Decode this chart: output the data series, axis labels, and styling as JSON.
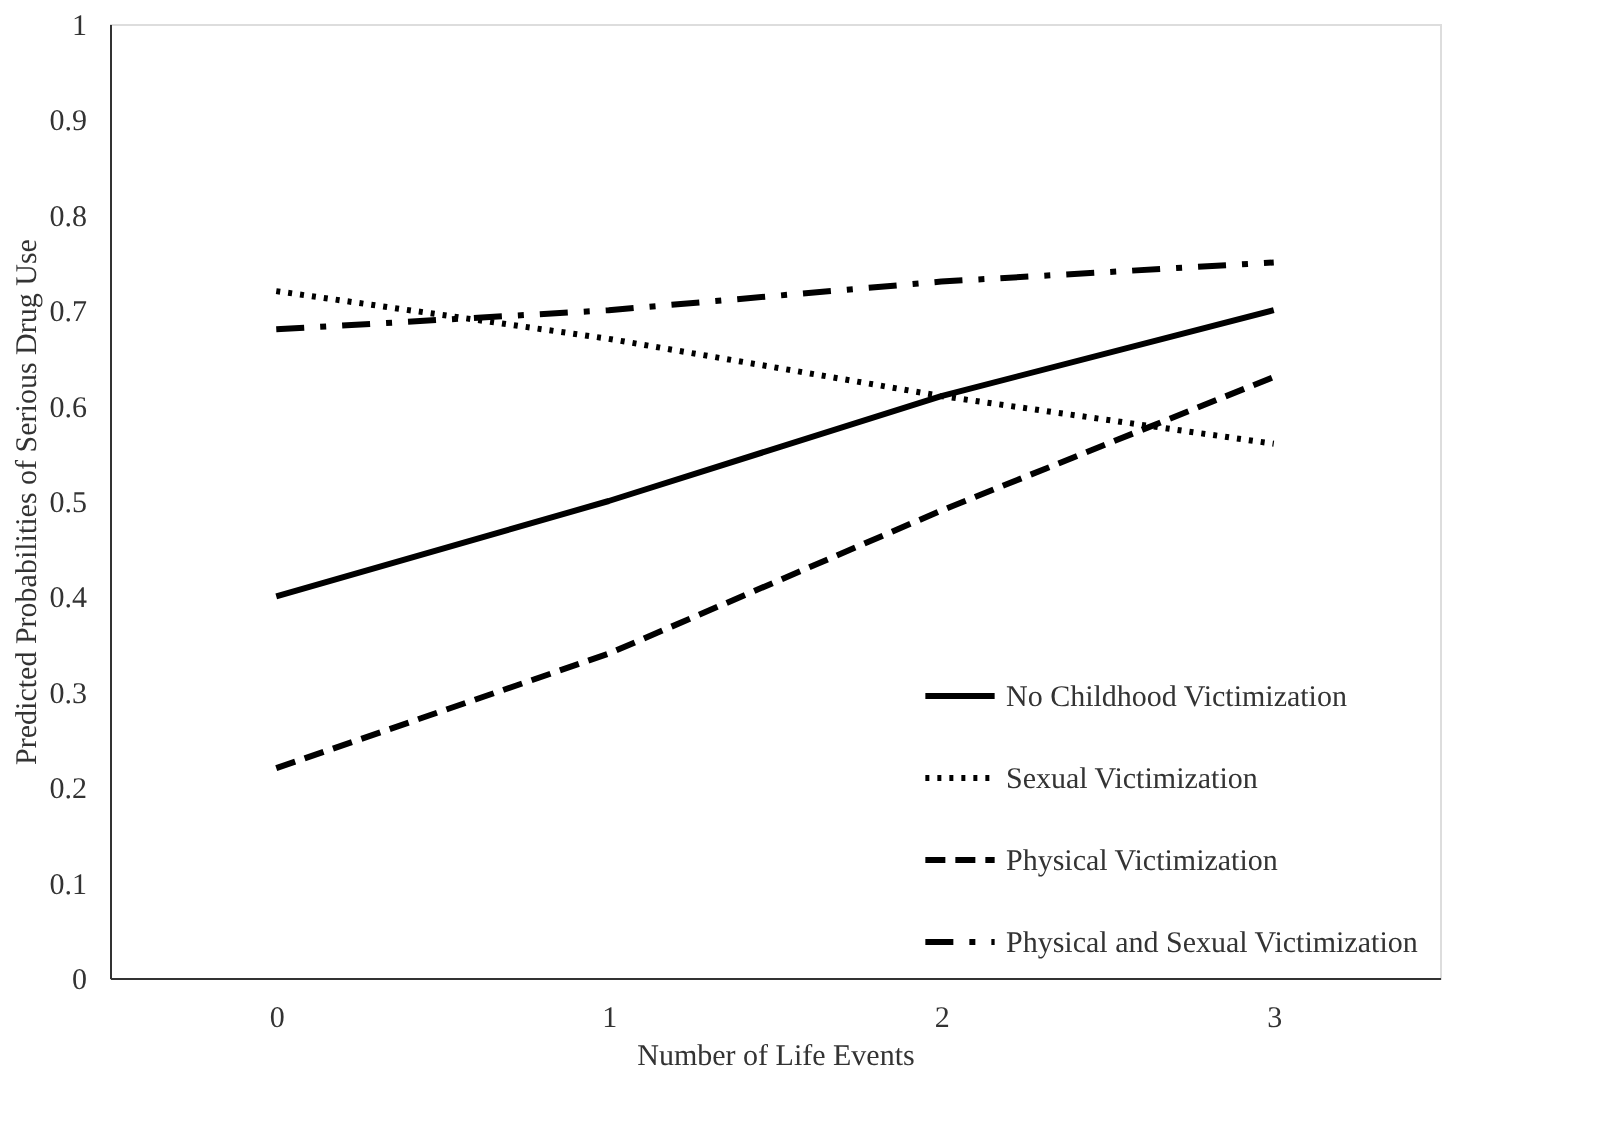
{
  "chart_data": {
    "type": "line",
    "xlabel": "Number of Life Events",
    "ylabel": "Predicted Probabilities of Serious Drug Use",
    "categories": [
      "0",
      "1",
      "2",
      "3"
    ],
    "series": [
      {
        "name": "No Childhood Victimization",
        "color": "#000000",
        "line_style": "solid",
        "values": [
          0.4,
          0.5,
          0.61,
          0.7
        ]
      },
      {
        "name": "Sexual Victimization",
        "color": "#000000",
        "line_style": "dotted",
        "values": [
          0.72,
          0.67,
          0.61,
          0.56
        ]
      },
      {
        "name": "Physical Victimization",
        "color": "#000000",
        "line_style": "dashed",
        "values": [
          0.22,
          0.34,
          0.49,
          0.63
        ]
      },
      {
        "name": "Physical and Sexual Victimization",
        "color": "#000000",
        "line_style": "dashdot",
        "values": [
          0.68,
          0.7,
          0.73,
          0.75
        ]
      }
    ],
    "ylim": [
      0,
      1
    ],
    "yticks": [
      0,
      0.1,
      0.2,
      0.3,
      0.4,
      0.5,
      0.6,
      0.7,
      0.8,
      0.9,
      1
    ],
    "grid": false,
    "legend": "bottom right",
    "marker": "none"
  }
}
